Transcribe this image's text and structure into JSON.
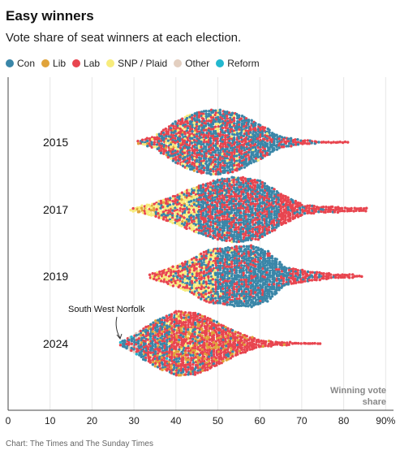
{
  "header": {
    "title": "Easy winners",
    "subtitle": "Vote share of seat winners at each election."
  },
  "legend": [
    {
      "label": "Con",
      "color": "#3a86a8"
    },
    {
      "label": "Lib",
      "color": "#e0a33a"
    },
    {
      "label": "Lab",
      "color": "#e8454f"
    },
    {
      "label": "SNP / Plaid",
      "color": "#f7ec7c"
    },
    {
      "label": "Other",
      "color": "#e3cfc0"
    },
    {
      "label": "Reform",
      "color": "#23b8cf"
    }
  ],
  "source": "Chart: The Times and The Sunday Times",
  "chart_data": {
    "type": "scatter",
    "title": "Easy winners",
    "subtitle": "Vote share of seat winners at each election.",
    "xlabel": "Winning vote share",
    "ylabel": "",
    "xlim": [
      0,
      90
    ],
    "x_ticks": [
      "0",
      "10",
      "20",
      "30",
      "40",
      "50",
      "60",
      "70",
      "80",
      "90%"
    ],
    "grid": true,
    "legend_position": "top",
    "annotation": {
      "label": "South West Norfolk",
      "year": "2024",
      "x": 26.7
    },
    "series": [
      {
        "category": "2015",
        "min": 31,
        "max": 81.3,
        "profile": [
          {
            "x": 31,
            "half_height": 0.06
          },
          {
            "x": 35,
            "half_height": 0.18
          },
          {
            "x": 40,
            "half_height": 0.62
          },
          {
            "x": 45,
            "half_height": 0.88
          },
          {
            "x": 50,
            "half_height": 0.96
          },
          {
            "x": 55,
            "half_height": 0.82
          },
          {
            "x": 60,
            "half_height": 0.52
          },
          {
            "x": 65,
            "half_height": 0.18
          },
          {
            "x": 70,
            "half_height": 0.07
          },
          {
            "x": 75,
            "half_height": 0.04
          },
          {
            "x": 81.3,
            "half_height": 0.03
          }
        ],
        "mix": [
          {
            "x": 40,
            "Con": 0.35,
            "Lab": 0.5,
            "SNP": 0.12,
            "Lib": 0.03
          },
          {
            "x": 50,
            "Con": 0.55,
            "Lab": 0.37,
            "SNP": 0.08
          },
          {
            "x": 60,
            "Con": 0.65,
            "Lab": 0.32,
            "SNP": 0.03
          },
          {
            "x": 70,
            "Con": 0.35,
            "Lab": 0.65
          },
          {
            "x": 81,
            "Lab": 1.0
          }
        ]
      },
      {
        "category": "2017",
        "min": 29.2,
        "max": 85.7,
        "profile": [
          {
            "x": 29.2,
            "half_height": 0.04
          },
          {
            "x": 35,
            "half_height": 0.22
          },
          {
            "x": 40,
            "half_height": 0.42
          },
          {
            "x": 45,
            "half_height": 0.68
          },
          {
            "x": 50,
            "half_height": 0.88
          },
          {
            "x": 55,
            "half_height": 0.96
          },
          {
            "x": 60,
            "half_height": 0.85
          },
          {
            "x": 65,
            "half_height": 0.48
          },
          {
            "x": 70,
            "half_height": 0.16
          },
          {
            "x": 75,
            "half_height": 0.1
          },
          {
            "x": 80,
            "half_height": 0.08
          },
          {
            "x": 85.7,
            "half_height": 0.05
          }
        ],
        "mix": [
          {
            "x": 30,
            "SNP": 0.7,
            "Lib": 0.2,
            "Lab": 0.1
          },
          {
            "x": 40,
            "SNP": 0.35,
            "Lab": 0.35,
            "Con": 0.25,
            "Lib": 0.05
          },
          {
            "x": 50,
            "Con": 0.55,
            "Lab": 0.43,
            "SNP": 0.02
          },
          {
            "x": 60,
            "Con": 0.55,
            "Lab": 0.45
          },
          {
            "x": 70,
            "Lab": 0.8,
            "Con": 0.2
          },
          {
            "x": 85,
            "Lab": 1.0
          }
        ]
      },
      {
        "category": "2019",
        "min": 33.8,
        "max": 84.7,
        "profile": [
          {
            "x": 33.8,
            "half_height": 0.08
          },
          {
            "x": 38,
            "half_height": 0.22
          },
          {
            "x": 43,
            "half_height": 0.46
          },
          {
            "x": 48,
            "half_height": 0.78
          },
          {
            "x": 53,
            "half_height": 0.85
          },
          {
            "x": 58,
            "half_height": 0.9
          },
          {
            "x": 62,
            "half_height": 0.72
          },
          {
            "x": 66,
            "half_height": 0.28
          },
          {
            "x": 72,
            "half_height": 0.15
          },
          {
            "x": 78,
            "half_height": 0.07
          },
          {
            "x": 84.7,
            "half_height": 0.04
          }
        ],
        "mix": [
          {
            "x": 35,
            "Lab": 0.55,
            "SNP": 0.25,
            "Lib": 0.1,
            "Con": 0.1
          },
          {
            "x": 45,
            "SNP": 0.3,
            "Lab": 0.38,
            "Con": 0.3,
            "Lib": 0.02
          },
          {
            "x": 55,
            "Con": 0.7,
            "Lab": 0.28,
            "SNP": 0.02
          },
          {
            "x": 62,
            "Con": 0.82,
            "Lab": 0.18
          },
          {
            "x": 72,
            "Lab": 0.7,
            "Con": 0.3
          },
          {
            "x": 84,
            "Lab": 1.0
          }
        ]
      },
      {
        "category": "2024",
        "min": 26.7,
        "max": 74.5,
        "profile": [
          {
            "x": 26.7,
            "half_height": 0.06
          },
          {
            "x": 30,
            "half_height": 0.28
          },
          {
            "x": 35,
            "half_height": 0.66
          },
          {
            "x": 40,
            "half_height": 0.94
          },
          {
            "x": 45,
            "half_height": 0.9
          },
          {
            "x": 50,
            "half_height": 0.62
          },
          {
            "x": 55,
            "half_height": 0.32
          },
          {
            "x": 60,
            "half_height": 0.12
          },
          {
            "x": 65,
            "half_height": 0.06
          },
          {
            "x": 70,
            "half_height": 0.04
          },
          {
            "x": 74.5,
            "half_height": 0.03
          }
        ],
        "mix": [
          {
            "x": 28,
            "Con": 0.45,
            "Lab": 0.35,
            "Reform": 0.1,
            "Other": 0.1
          },
          {
            "x": 35,
            "Con": 0.45,
            "Lab": 0.4,
            "Lib": 0.1,
            "SNP": 0.03,
            "Reform": 0.02
          },
          {
            "x": 42,
            "Lab": 0.55,
            "Con": 0.2,
            "Lib": 0.2,
            "SNP": 0.05
          },
          {
            "x": 50,
            "Lab": 0.72,
            "Lib": 0.2,
            "Con": 0.08
          },
          {
            "x": 60,
            "Lab": 0.9,
            "Lib": 0.1
          },
          {
            "x": 74,
            "Lab": 1.0
          }
        ]
      }
    ]
  }
}
